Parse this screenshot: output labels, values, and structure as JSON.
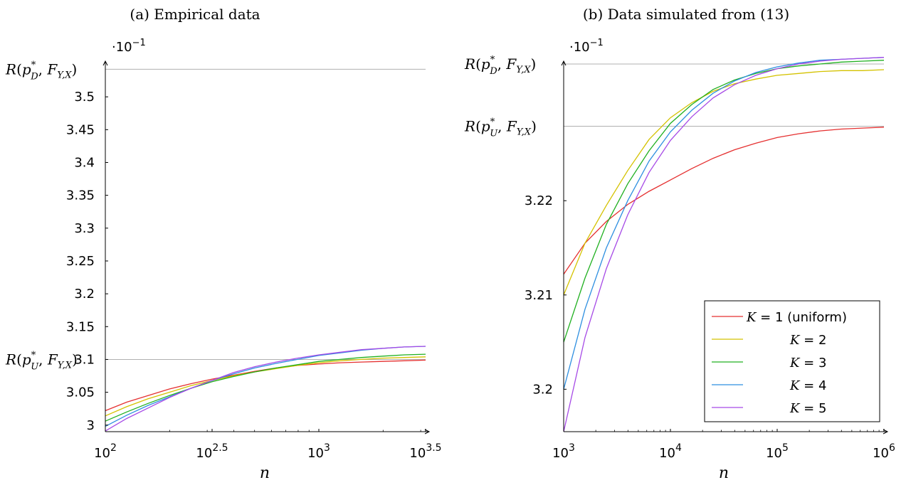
{
  "chart_data": [
    {
      "type": "line",
      "title": "(a) Empirical data",
      "xlabel": "n",
      "ylabel": "",
      "y_multiplier": "·10",
      "y_multiplier_exp": "−1",
      "x_scale": "log10",
      "xlim_log10": [
        2,
        3.5
      ],
      "ylim": [
        2.99,
        3.55
      ],
      "x_ticks": [
        {
          "log10": 2,
          "base": "10",
          "exp": "2"
        },
        {
          "log10": 2.5,
          "base": "10",
          "exp": "2.5"
        },
        {
          "log10": 3,
          "base": "10",
          "exp": "3"
        },
        {
          "log10": 3.5,
          "base": "10",
          "exp": "3.5"
        }
      ],
      "y_ticks": [
        3,
        3.05,
        3.1,
        3.15,
        3.2,
        3.25,
        3.3,
        3.35,
        3.4,
        3.45,
        3.5
      ],
      "y_tick_labels": [
        "3",
        "3.05",
        "3.1",
        "3.15",
        "3.2",
        "3.25",
        "3.3",
        "3.35",
        "3.4",
        "3.45",
        "3.5"
      ],
      "ref_lines": [
        {
          "y": 3.542,
          "label_main": "R(p",
          "sup": "*",
          "sub": "D",
          "label_rest": ", F",
          "sub2": "Y,X",
          "label_end": ")"
        },
        {
          "y": 3.1,
          "label_main": "R(p",
          "sup": "*",
          "sub": "U",
          "label_rest": ", F",
          "sub2": "Y,X",
          "label_end": ")"
        }
      ],
      "series": [
        {
          "color": "#e53030",
          "x_log10": [
            2,
            2.1,
            2.2,
            2.3,
            2.4,
            2.5,
            2.6,
            2.7,
            2.8,
            2.9,
            3,
            3.1,
            3.2,
            3.3,
            3.4,
            3.5
          ],
          "values": [
            3.022,
            3.035,
            3.045,
            3.055,
            3.063,
            3.07,
            3.076,
            3.082,
            3.087,
            3.091,
            3.093,
            3.095,
            3.096,
            3.097,
            3.098,
            3.099
          ]
        },
        {
          "color": "#d4c200",
          "x_log10": [
            2,
            2.1,
            2.2,
            2.3,
            2.4,
            2.5,
            2.6,
            2.7,
            2.8,
            2.9,
            3,
            3.1,
            3.2,
            3.3,
            3.4,
            3.5
          ],
          "values": [
            3.014,
            3.028,
            3.04,
            3.05,
            3.06,
            3.068,
            3.075,
            3.081,
            3.086,
            3.091,
            3.095,
            3.098,
            3.1,
            3.102,
            3.103,
            3.104
          ]
        },
        {
          "color": "#20b020",
          "x_log10": [
            2,
            2.1,
            2.2,
            2.3,
            2.4,
            2.5,
            2.6,
            2.7,
            2.8,
            2.9,
            3,
            3.1,
            3.2,
            3.3,
            3.4,
            3.5
          ],
          "values": [
            3.006,
            3.02,
            3.033,
            3.045,
            3.056,
            3.066,
            3.074,
            3.081,
            3.087,
            3.092,
            3.097,
            3.1,
            3.103,
            3.105,
            3.107,
            3.108
          ]
        },
        {
          "color": "#2e8fe0",
          "x_log10": [
            2,
            2.1,
            2.2,
            2.3,
            2.4,
            2.5,
            2.6,
            2.7,
            2.8,
            2.9,
            3,
            3.1,
            3.2,
            3.3,
            3.4,
            3.5
          ],
          "values": [
            2.998,
            3.015,
            3.03,
            3.043,
            3.056,
            3.068,
            3.078,
            3.087,
            3.094,
            3.1,
            3.106,
            3.11,
            3.114,
            3.117,
            3.119,
            3.12
          ]
        },
        {
          "color": "#a64ae6",
          "x_log10": [
            2,
            2.1,
            2.2,
            2.3,
            2.4,
            2.5,
            2.6,
            2.7,
            2.8,
            2.9,
            3,
            3.1,
            3.2,
            3.3,
            3.4,
            3.5
          ],
          "values": [
            2.991,
            3.01,
            3.026,
            3.042,
            3.056,
            3.068,
            3.08,
            3.089,
            3.096,
            3.102,
            3.107,
            3.111,
            3.115,
            3.117,
            3.119,
            3.12
          ]
        }
      ]
    },
    {
      "type": "line",
      "title": "(b) Data simulated from (13)",
      "xlabel": "n",
      "ylabel": "",
      "y_multiplier": "·10",
      "y_multiplier_exp": "−1",
      "x_scale": "log10",
      "xlim_log10": [
        3,
        6
      ],
      "ylim": [
        3.1955,
        3.2345
      ],
      "x_ticks": [
        {
          "log10": 3,
          "base": "10",
          "exp": "3"
        },
        {
          "log10": 4,
          "base": "10",
          "exp": "4"
        },
        {
          "log10": 5,
          "base": "10",
          "exp": "5"
        },
        {
          "log10": 6,
          "base": "10",
          "exp": "6"
        }
      ],
      "y_ticks": [
        3.2,
        3.21,
        3.22
      ],
      "y_tick_labels": [
        "3.2",
        "3.21",
        "3.22"
      ],
      "ref_lines": [
        {
          "y": 3.2345,
          "label_main": "R(p",
          "sup": "*",
          "sub": "D",
          "label_rest": ", F",
          "sub2": "Y,X",
          "label_end": ")"
        },
        {
          "y": 3.2279,
          "label_main": "R(p",
          "sup": "*",
          "sub": "U",
          "label_rest": ", F",
          "sub2": "Y,X",
          "label_end": ")"
        }
      ],
      "legend": {
        "placement": "bottom-right",
        "entries": [
          {
            "label": "K = 1 (uniform)",
            "k": "1",
            "suffix": " (uniform)",
            "color": "#e53030"
          },
          {
            "label": "K = 2",
            "k": "2",
            "suffix": "",
            "color": "#d4c200"
          },
          {
            "label": "K = 3",
            "k": "3",
            "suffix": "",
            "color": "#20b020"
          },
          {
            "label": "K = 4",
            "k": "4",
            "suffix": "",
            "color": "#2e8fe0"
          },
          {
            "label": "K = 5",
            "k": "5",
            "suffix": "",
            "color": "#a64ae6"
          }
        ]
      },
      "series": [
        {
          "name": "K = 1 (uniform)",
          "color": "#e53030",
          "x_log10": [
            3,
            3.2,
            3.4,
            3.6,
            3.8,
            4,
            4.2,
            4.4,
            4.6,
            4.8,
            5,
            5.2,
            5.4,
            5.6,
            5.8,
            6
          ],
          "values": [
            3.2122,
            3.2155,
            3.2178,
            3.2196,
            3.221,
            3.2222,
            3.2234,
            3.2245,
            3.2254,
            3.2261,
            3.2267,
            3.2271,
            3.2274,
            3.2276,
            3.2277,
            3.2278
          ]
        },
        {
          "name": "K = 2",
          "color": "#d4c200",
          "x_log10": [
            3,
            3.2,
            3.4,
            3.6,
            3.8,
            4,
            4.2,
            4.4,
            4.6,
            4.8,
            5,
            5.2,
            5.4,
            5.6,
            5.8,
            6
          ],
          "values": [
            3.21,
            3.2155,
            3.2195,
            3.2232,
            3.2265,
            3.2288,
            3.2304,
            3.2316,
            3.2324,
            3.2329,
            3.2333,
            3.2335,
            3.2337,
            3.2338,
            3.2338,
            3.2339
          ]
        },
        {
          "name": "K = 3",
          "color": "#20b020",
          "x_log10": [
            3,
            3.2,
            3.4,
            3.6,
            3.8,
            4,
            4.2,
            4.4,
            4.6,
            4.8,
            5,
            5.2,
            5.4,
            5.6,
            5.8,
            6
          ],
          "values": [
            3.205,
            3.2118,
            3.2175,
            3.2218,
            3.2253,
            3.2282,
            3.2302,
            3.2318,
            3.2328,
            3.2335,
            3.234,
            3.2343,
            3.2345,
            3.2347,
            3.2348,
            3.2349
          ]
        },
        {
          "name": "K = 4",
          "color": "#2e8fe0",
          "x_log10": [
            3,
            3.2,
            3.4,
            3.6,
            3.8,
            4,
            4.2,
            4.4,
            4.6,
            4.8,
            5,
            5.2,
            5.4,
            5.6,
            5.8,
            6
          ],
          "values": [
            3.2,
            3.2085,
            3.215,
            3.22,
            3.2242,
            3.2273,
            3.2296,
            3.2314,
            3.2327,
            3.2336,
            3.2342,
            3.2346,
            3.2349,
            3.235,
            3.2351,
            3.2352
          ]
        },
        {
          "name": "K = 5",
          "color": "#a64ae6",
          "x_log10": [
            3,
            3.2,
            3.4,
            3.6,
            3.8,
            4,
            4.2,
            4.4,
            4.6,
            4.8,
            5,
            5.2,
            5.4,
            5.6,
            5.8,
            6
          ],
          "values": [
            3.1955,
            3.2055,
            3.2128,
            3.2185,
            3.223,
            3.2264,
            3.2289,
            3.2309,
            3.2323,
            3.2333,
            3.234,
            3.2345,
            3.2348,
            3.235,
            3.2351,
            3.2352
          ]
        }
      ]
    }
  ]
}
